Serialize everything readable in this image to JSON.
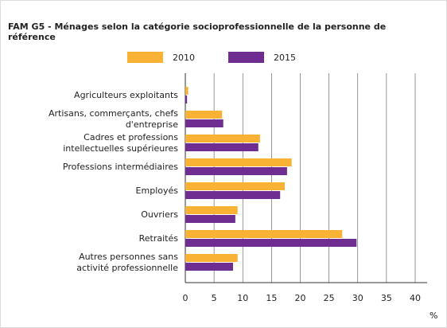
{
  "chart_data": {
    "type": "hbar",
    "title": [
      "FAM G5 - Ménages selon la catégorie socioprofessionnelle de la personne de",
      "référence"
    ],
    "categories": [
      [
        "Agriculteurs exploitants"
      ],
      [
        "Artisans, commerçants, chefs",
        "d'entreprise"
      ],
      [
        "Cadres et professions",
        "intellectuelles supérieures"
      ],
      [
        "Professions intermédiaires"
      ],
      [
        "Employés"
      ],
      [
        "Ouvriers"
      ],
      [
        "Retraités"
      ],
      [
        "Autres personnes sans",
        "activité professionnelle"
      ]
    ],
    "series": [
      {
        "name": "2010",
        "color": "#f9b233",
        "values": [
          0.5,
          6.4,
          13.0,
          18.5,
          17.3,
          9.1,
          27.3,
          9.1
        ]
      },
      {
        "name": "2015",
        "color": "#6f2c91",
        "values": [
          0.3,
          6.6,
          12.7,
          17.7,
          16.5,
          8.7,
          29.8,
          8.3
        ]
      }
    ],
    "x_label": "%",
    "xlim": [
      0,
      40
    ],
    "xticks": [
      0,
      5,
      10,
      15,
      20,
      25,
      30,
      35,
      40
    ],
    "grid": true
  }
}
